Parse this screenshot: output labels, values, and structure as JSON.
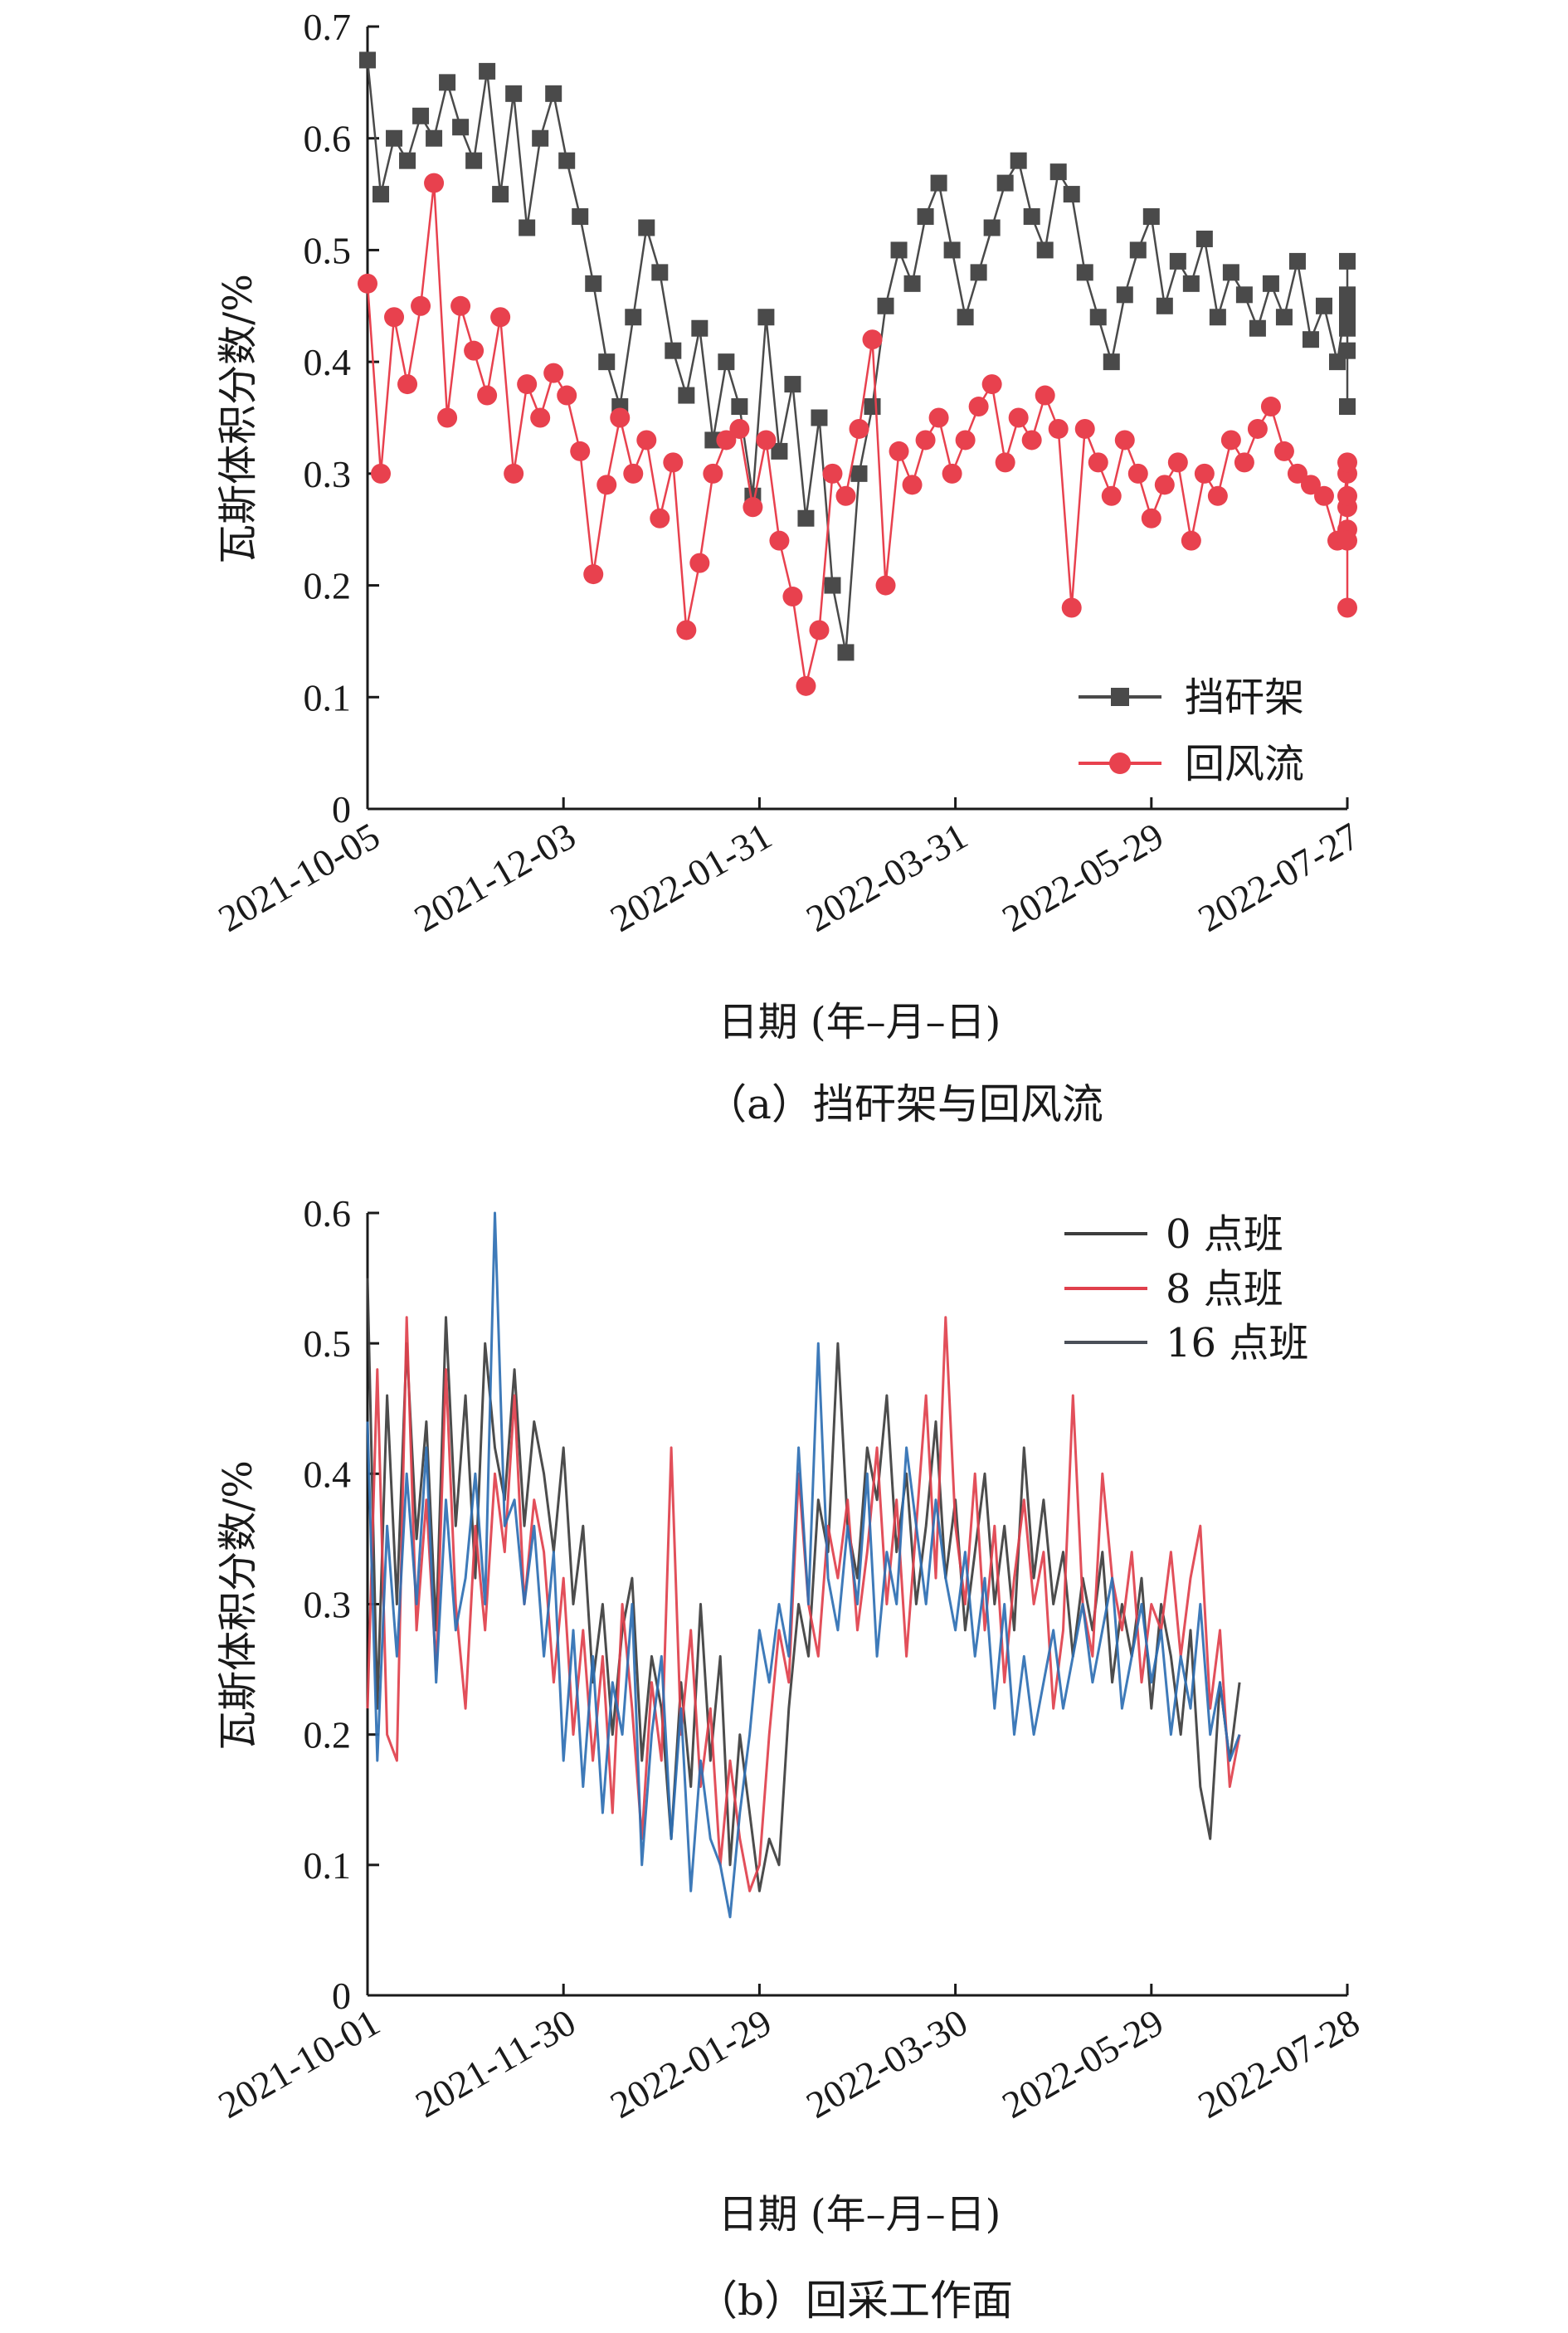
{
  "chart_data": [
    {
      "type": "line",
      "caption": "（a）挡矸架与回风流",
      "xlabel": "日期 (年–月–日)",
      "ylabel": "瓦斯体积分数/%",
      "xlim": [
        "2021-10-05",
        "2022-07-27"
      ],
      "xticks": [
        "2021-10-05",
        "2021-12-03",
        "2022-01-31",
        "2022-03-31",
        "2022-05-29",
        "2022-07-27"
      ],
      "ylim": [
        0,
        0.7
      ],
      "yticks": [
        "0",
        "0.1",
        "0.2",
        "0.3",
        "0.4",
        "0.5",
        "0.6",
        "0.7"
      ],
      "legend_position": "bottom-right",
      "colors": {
        "挡矸架": "#4a4a4a",
        "回风流": "#e8414e"
      },
      "series": [
        {
          "name": "挡矸架",
          "marker": "square",
          "x_start": "2021-10-05",
          "x_step_days": 4,
          "values": [
            0.67,
            0.55,
            0.6,
            0.58,
            0.62,
            0.6,
            0.65,
            0.61,
            0.58,
            0.66,
            0.55,
            0.64,
            0.52,
            0.6,
            0.64,
            0.58,
            0.53,
            0.47,
            0.4,
            0.36,
            0.44,
            0.52,
            0.48,
            0.41,
            0.37,
            0.43,
            0.33,
            0.4,
            0.36,
            0.28,
            0.44,
            0.32,
            0.38,
            0.26,
            0.35,
            0.2,
            0.14,
            0.3,
            0.36,
            0.45,
            0.5,
            0.47,
            0.53,
            0.56,
            0.5,
            0.44,
            0.48,
            0.52,
            0.56,
            0.58,
            0.53,
            0.5,
            0.57,
            0.55,
            0.48,
            0.44,
            0.4,
            0.46,
            0.5,
            0.53,
            0.45,
            0.49,
            0.47,
            0.51,
            0.44,
            0.48,
            0.46,
            0.43,
            0.47,
            0.44,
            0.49,
            0.42,
            0.45,
            0.4,
            0.46,
            0.43,
            0.49,
            0.44,
            0.41,
            0.45,
            0.36
          ]
        },
        {
          "name": "回风流",
          "marker": "circle",
          "x_start": "2021-10-05",
          "x_step_days": 4,
          "values": [
            0.47,
            0.3,
            0.44,
            0.38,
            0.45,
            0.56,
            0.35,
            0.45,
            0.41,
            0.37,
            0.44,
            0.3,
            0.38,
            0.35,
            0.39,
            0.37,
            0.32,
            0.21,
            0.29,
            0.35,
            0.3,
            0.33,
            0.26,
            0.31,
            0.16,
            0.22,
            0.3,
            0.33,
            0.34,
            0.27,
            0.33,
            0.24,
            0.19,
            0.11,
            0.16,
            0.3,
            0.28,
            0.34,
            0.42,
            0.2,
            0.32,
            0.29,
            0.33,
            0.35,
            0.3,
            0.33,
            0.36,
            0.38,
            0.31,
            0.35,
            0.33,
            0.37,
            0.34,
            0.18,
            0.34,
            0.31,
            0.28,
            0.33,
            0.3,
            0.26,
            0.29,
            0.31,
            0.24,
            0.3,
            0.28,
            0.33,
            0.31,
            0.34,
            0.36,
            0.32,
            0.3,
            0.29,
            0.28,
            0.24,
            0.3,
            0.27,
            0.31,
            0.28,
            0.25,
            0.24,
            0.18
          ]
        }
      ]
    },
    {
      "type": "line",
      "caption": "（b）回采工作面",
      "xlabel": "日期 (年–月–日)",
      "ylabel": "瓦斯体积分数/%",
      "xlim": [
        "2021-10-01",
        "2022-07-28"
      ],
      "xticks": [
        "2021-10-01",
        "2021-11-30",
        "2022-01-29",
        "2022-03-30",
        "2022-05-29",
        "2022-07-28"
      ],
      "ylim": [
        0,
        0.6
      ],
      "yticks": [
        "0",
        "0.1",
        "0.2",
        "0.3",
        "0.4",
        "0.5",
        "0.6"
      ],
      "legend_position": "top-right",
      "colors": {
        "0 点班": "#3d3d3d",
        "8 点班": "#e0404c",
        "16 点班": "#2e6fb3"
      },
      "series": [
        {
          "name": "0 点班",
          "x_start": "2021-10-01",
          "x_step_days": 3,
          "values": [
            0.55,
            0.22,
            0.46,
            0.3,
            0.5,
            0.35,
            0.44,
            0.28,
            0.52,
            0.36,
            0.46,
            0.32,
            0.5,
            0.42,
            0.38,
            0.48,
            0.36,
            0.44,
            0.4,
            0.34,
            0.42,
            0.3,
            0.36,
            0.24,
            0.3,
            0.2,
            0.28,
            0.32,
            0.18,
            0.26,
            0.22,
            0.12,
            0.24,
            0.16,
            0.3,
            0.18,
            0.26,
            0.1,
            0.2,
            0.14,
            0.08,
            0.12,
            0.1,
            0.22,
            0.3,
            0.26,
            0.38,
            0.34,
            0.5,
            0.36,
            0.32,
            0.42,
            0.38,
            0.46,
            0.34,
            0.4,
            0.3,
            0.36,
            0.44,
            0.32,
            0.38,
            0.28,
            0.34,
            0.4,
            0.3,
            0.36,
            0.28,
            0.42,
            0.32,
            0.38,
            0.3,
            0.34,
            0.26,
            0.32,
            0.28,
            0.34,
            0.24,
            0.3,
            0.26,
            0.32,
            0.22,
            0.3,
            0.26,
            0.2,
            0.28,
            0.16,
            0.12,
            0.24,
            0.18,
            0.24
          ]
        },
        {
          "name": "8 点班",
          "x_start": "2021-10-01",
          "x_step_days": 3,
          "values": [
            0.22,
            0.48,
            0.2,
            0.18,
            0.52,
            0.28,
            0.38,
            0.25,
            0.48,
            0.3,
            0.22,
            0.36,
            0.28,
            0.4,
            0.34,
            0.46,
            0.3,
            0.38,
            0.34,
            0.24,
            0.32,
            0.2,
            0.28,
            0.18,
            0.26,
            0.14,
            0.3,
            0.22,
            0.12,
            0.24,
            0.18,
            0.42,
            0.2,
            0.28,
            0.16,
            0.22,
            0.1,
            0.18,
            0.12,
            0.08,
            0.1,
            0.2,
            0.28,
            0.24,
            0.4,
            0.3,
            0.26,
            0.36,
            0.32,
            0.38,
            0.28,
            0.34,
            0.42,
            0.3,
            0.38,
            0.26,
            0.36,
            0.46,
            0.32,
            0.52,
            0.36,
            0.3,
            0.4,
            0.28,
            0.36,
            0.24,
            0.32,
            0.38,
            0.3,
            0.34,
            0.22,
            0.28,
            0.46,
            0.3,
            0.26,
            0.4,
            0.32,
            0.28,
            0.34,
            0.24,
            0.3,
            0.28,
            0.34,
            0.26,
            0.32,
            0.36,
            0.22,
            0.28,
            0.16,
            0.2
          ]
        },
        {
          "name": "16 点班",
          "x_start": "2021-10-01",
          "x_step_days": 3,
          "values": [
            0.44,
            0.18,
            0.36,
            0.26,
            0.4,
            0.3,
            0.42,
            0.24,
            0.38,
            0.28,
            0.32,
            0.4,
            0.3,
            0.6,
            0.36,
            0.38,
            0.3,
            0.36,
            0.26,
            0.34,
            0.18,
            0.28,
            0.16,
            0.26,
            0.14,
            0.24,
            0.2,
            0.3,
            0.1,
            0.2,
            0.26,
            0.12,
            0.22,
            0.08,
            0.18,
            0.12,
            0.1,
            0.06,
            0.14,
            0.2,
            0.28,
            0.24,
            0.3,
            0.26,
            0.42,
            0.3,
            0.5,
            0.32,
            0.28,
            0.36,
            0.3,
            0.4,
            0.26,
            0.34,
            0.3,
            0.42,
            0.36,
            0.3,
            0.38,
            0.32,
            0.28,
            0.34,
            0.26,
            0.32,
            0.22,
            0.3,
            0.2,
            0.26,
            0.2,
            0.24,
            0.28,
            0.22,
            0.26,
            0.3,
            0.24,
            0.28,
            0.32,
            0.22,
            0.26,
            0.3,
            0.24,
            0.28,
            0.2,
            0.26,
            0.22,
            0.3,
            0.2,
            0.24,
            0.18,
            0.2
          ]
        }
      ]
    }
  ]
}
